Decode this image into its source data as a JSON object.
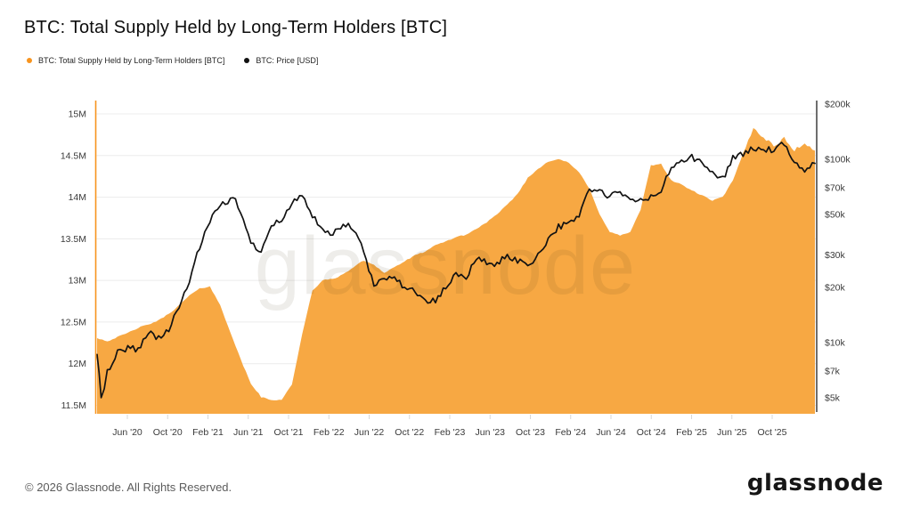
{
  "title": "BTC: Total Supply Held by Long-Term Holders [BTC]",
  "legend": [
    {
      "label": "BTC: Total Supply Held by Long-Term Holders [BTC]",
      "color": "#f7941e"
    },
    {
      "label": "BTC: Price [USD]",
      "color": "#111111"
    }
  ],
  "watermark": "glassnode",
  "footer": {
    "copyright": "© 2026 Glassnode. All Rights Reserved.",
    "logo_text": "glassnode"
  },
  "chart_data": {
    "type": "area",
    "note": "orange area = LTH supply (left linear axis, M BTC); black line = BTC price (right log axis, USD). Monthly samples starting Mar 2020, ending Jan 2026.",
    "x_start": "2020-03",
    "x_tick_labels": [
      "Jun '20",
      "Oct '20",
      "Feb '21",
      "Jun '21",
      "Oct '21",
      "Feb '22",
      "Jun '22",
      "Oct '22",
      "Feb '23",
      "Jun '23",
      "Oct '23",
      "Feb '24",
      "Jun '24",
      "Oct '24",
      "Feb '25",
      "Jun '25",
      "Oct '25"
    ],
    "y_left": {
      "unit": "M BTC",
      "scale": "linear",
      "range": [
        11.5,
        15
      ],
      "tick_labels": [
        "15M",
        "14.5M",
        "14M",
        "13.5M",
        "13M",
        "12.5M",
        "12M",
        "11.5M"
      ],
      "tick_values": [
        15,
        14.5,
        14,
        13.5,
        13,
        12.5,
        12,
        11.5
      ],
      "axis_color": "#f7941e",
      "grid": true
    },
    "y_right": {
      "unit": "USD",
      "scale": "log",
      "tick_labels": [
        "$200k",
        "$100k",
        "$70k",
        "$50k",
        "$30k",
        "$20k",
        "$10k",
        "$7k",
        "$5k"
      ],
      "tick_values_k": [
        200,
        100,
        70,
        50,
        30,
        20,
        10,
        7,
        5
      ],
      "axis_color": "#3f3f3f",
      "grid": false
    },
    "series": [
      {
        "name": "BTC: Total Supply Held by Long-Term Holders [BTC]",
        "type": "area",
        "fill_color": "#f7a843",
        "unit": "M BTC",
        "monthly_values": [
          12.31,
          12.27,
          12.32,
          12.37,
          12.43,
          12.47,
          12.52,
          12.6,
          12.7,
          12.82,
          12.9,
          12.93,
          12.7,
          12.38,
          12.05,
          11.76,
          11.6,
          11.56,
          11.57,
          11.75,
          12.35,
          12.88,
          13.0,
          13.02,
          13.07,
          13.16,
          13.24,
          13.19,
          13.09,
          13.16,
          13.23,
          13.3,
          13.35,
          13.42,
          13.47,
          13.52,
          13.55,
          13.62,
          13.7,
          13.79,
          13.91,
          14.04,
          14.23,
          14.34,
          14.43,
          14.46,
          14.41,
          14.3,
          14.1,
          13.8,
          13.58,
          13.54,
          13.58,
          13.85,
          14.38,
          14.4,
          14.2,
          14.15,
          14.08,
          14.02,
          13.96,
          14.0,
          14.2,
          14.52,
          14.83,
          14.72,
          14.62,
          14.7,
          14.57,
          14.64,
          14.56
        ]
      },
      {
        "name": "BTC: Price [USD]",
        "type": "line",
        "line_color": "#121212",
        "unit": "USD thousands",
        "points_month_valuek": [
          [
            0,
            8.8
          ],
          [
            0.4,
            4.9
          ],
          [
            1,
            6.9
          ],
          [
            2,
            8.8
          ],
          [
            3,
            9.4
          ],
          [
            4,
            9.2
          ],
          [
            5,
            11.4
          ],
          [
            6,
            10.6
          ],
          [
            7,
            11.8
          ],
          [
            8,
            15.5
          ],
          [
            9,
            22
          ],
          [
            10,
            33
          ],
          [
            11,
            46
          ],
          [
            12,
            55
          ],
          [
            13,
            60
          ],
          [
            13.5,
            63
          ],
          [
            14,
            50
          ],
          [
            15,
            35
          ],
          [
            16,
            31.5
          ],
          [
            17,
            45
          ],
          [
            18,
            46
          ],
          [
            19,
            57
          ],
          [
            20,
            65
          ],
          [
            21,
            49
          ],
          [
            22,
            40
          ],
          [
            23,
            39
          ],
          [
            24,
            44
          ],
          [
            25,
            42
          ],
          [
            26,
            31
          ],
          [
            27,
            20.5
          ],
          [
            28,
            22
          ],
          [
            29,
            23.5
          ],
          [
            30,
            19.5
          ],
          [
            31,
            19.5
          ],
          [
            32,
            16.6
          ],
          [
            33,
            16.8
          ],
          [
            34,
            20
          ],
          [
            35,
            23.5
          ],
          [
            36,
            23
          ],
          [
            37,
            28.5
          ],
          [
            38,
            27.5
          ],
          [
            39,
            26.5
          ],
          [
            40,
            30
          ],
          [
            41,
            28
          ],
          [
            42,
            26.5
          ],
          [
            43,
            30
          ],
          [
            44,
            37
          ],
          [
            45,
            43
          ],
          [
            46,
            44
          ],
          [
            47,
            50
          ],
          [
            48,
            69
          ],
          [
            49,
            66
          ],
          [
            50,
            63
          ],
          [
            51,
            66
          ],
          [
            52,
            59
          ],
          [
            53,
            60
          ],
          [
            54,
            62
          ],
          [
            55,
            67
          ],
          [
            56,
            90
          ],
          [
            57,
            99
          ],
          [
            58,
            102
          ],
          [
            59,
            95
          ],
          [
            60,
            84
          ],
          [
            61,
            78
          ],
          [
            62,
            103
          ],
          [
            63,
            106
          ],
          [
            64,
            115
          ],
          [
            65,
            113
          ],
          [
            66,
            112
          ],
          [
            67,
            121
          ],
          [
            68,
            93
          ],
          [
            69,
            88
          ],
          [
            70,
            95
          ]
        ]
      }
    ]
  }
}
